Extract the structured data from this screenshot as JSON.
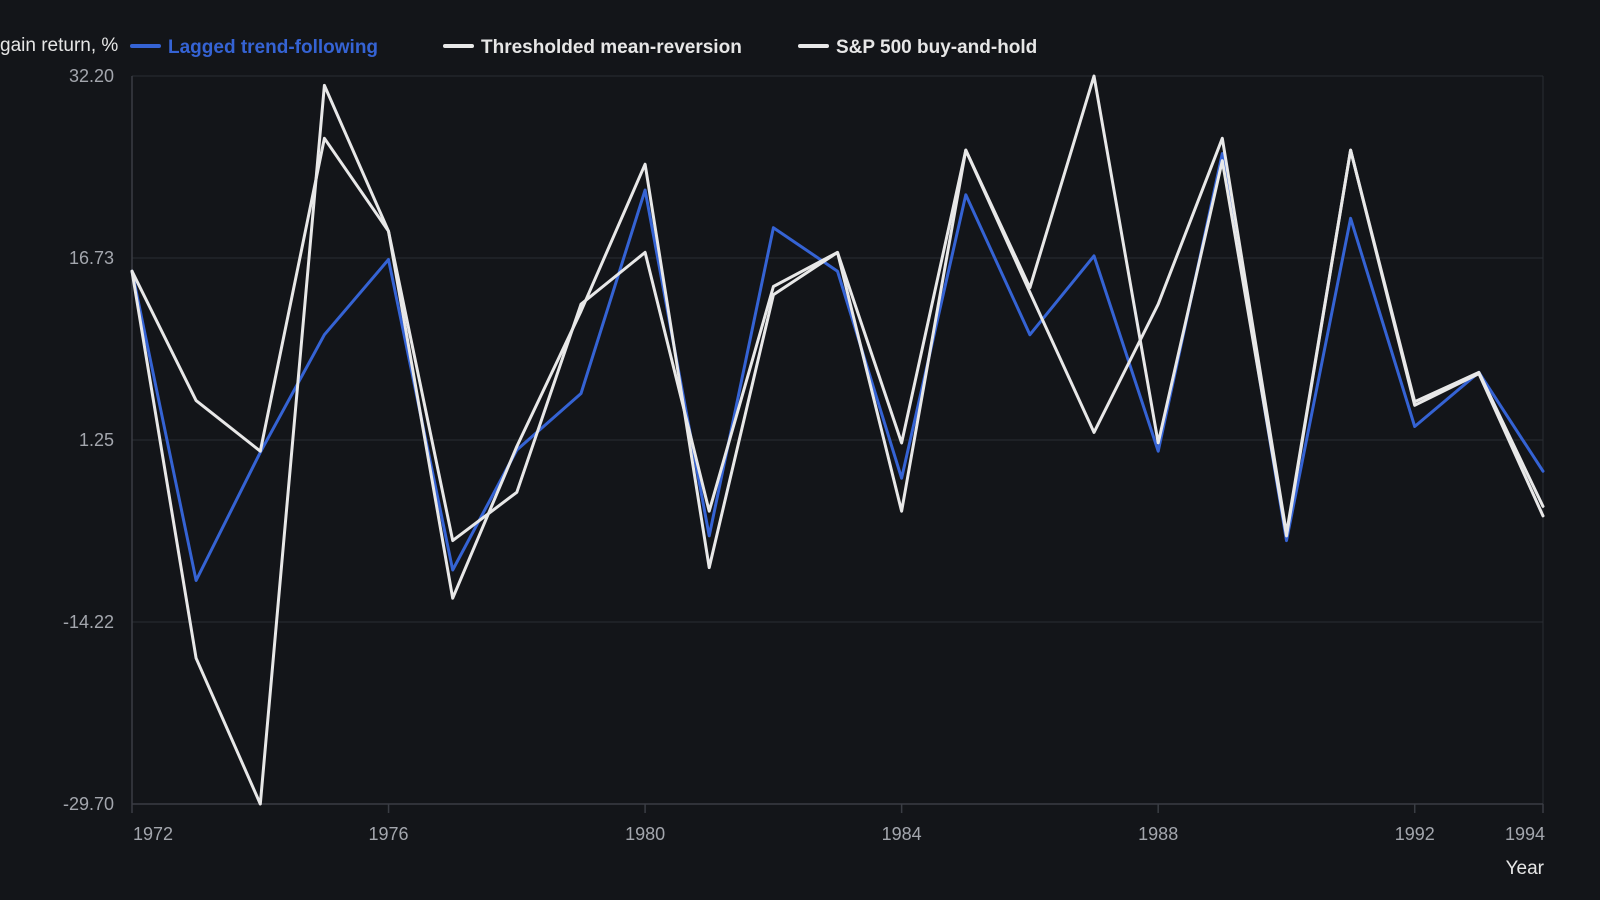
{
  "chart_data": {
    "type": "line",
    "title": "",
    "ylabel": "gain return, %",
    "xlabel": "Year",
    "ylim": [
      -29.7,
      32.2
    ],
    "xlim": [
      1972,
      1994
    ],
    "y_ticks": [
      "32.20",
      "16.73",
      "1.25",
      "-14.22",
      "-29.70"
    ],
    "y_tick_values": [
      32.2,
      16.73,
      1.25,
      -14.22,
      -29.7
    ],
    "x_ticks": [
      "1972",
      "1976",
      "1980",
      "1984",
      "1988",
      "1992",
      "1994"
    ],
    "x_tick_values": [
      1972,
      1976,
      1980,
      1984,
      1988,
      1992,
      1994
    ],
    "grid": true,
    "legend_position": "top-left",
    "x": [
      1972,
      1973,
      1974,
      1975,
      1976,
      1977,
      1978,
      1979,
      1980,
      1981,
      1982,
      1983,
      1984,
      1985,
      1986,
      1987,
      1988,
      1989,
      1990,
      1991,
      1992,
      1993,
      1994
    ],
    "series": [
      {
        "name": "Lagged trend-following",
        "color": "#3563d4",
        "values": [
          15.6,
          -10.7,
          0.2,
          10.2,
          16.6,
          -9.8,
          0.4,
          5.2,
          22.5,
          -6.9,
          19.3,
          15.6,
          -2.0,
          22.1,
          10.2,
          16.9,
          0.3,
          25.6,
          -7.3,
          20.1,
          2.4,
          7.0,
          -1.4
        ]
      },
      {
        "name": "Thresholded mean-reversion",
        "color": "#e8e8e8",
        "values": [
          15.6,
          4.6,
          0.3,
          26.9,
          19.0,
          -7.3,
          -3.2,
          12.8,
          17.2,
          -4.8,
          14.3,
          17.2,
          1.0,
          25.9,
          13.8,
          1.9,
          12.8,
          26.9,
          -6.7,
          25.9,
          4.5,
          7.0,
          -4.4
        ]
      },
      {
        "name": "S&P 500 buy-and-hold",
        "color": "#e8e8e8",
        "values": [
          15.6,
          -17.3,
          -29.7,
          31.4,
          19.0,
          -12.2,
          0.7,
          12.2,
          24.7,
          -9.6,
          13.6,
          17.2,
          -4.8,
          25.9,
          14.2,
          32.2,
          1.0,
          25.0,
          -6.9,
          25.9,
          4.2,
          6.9,
          -5.2
        ]
      }
    ]
  }
}
